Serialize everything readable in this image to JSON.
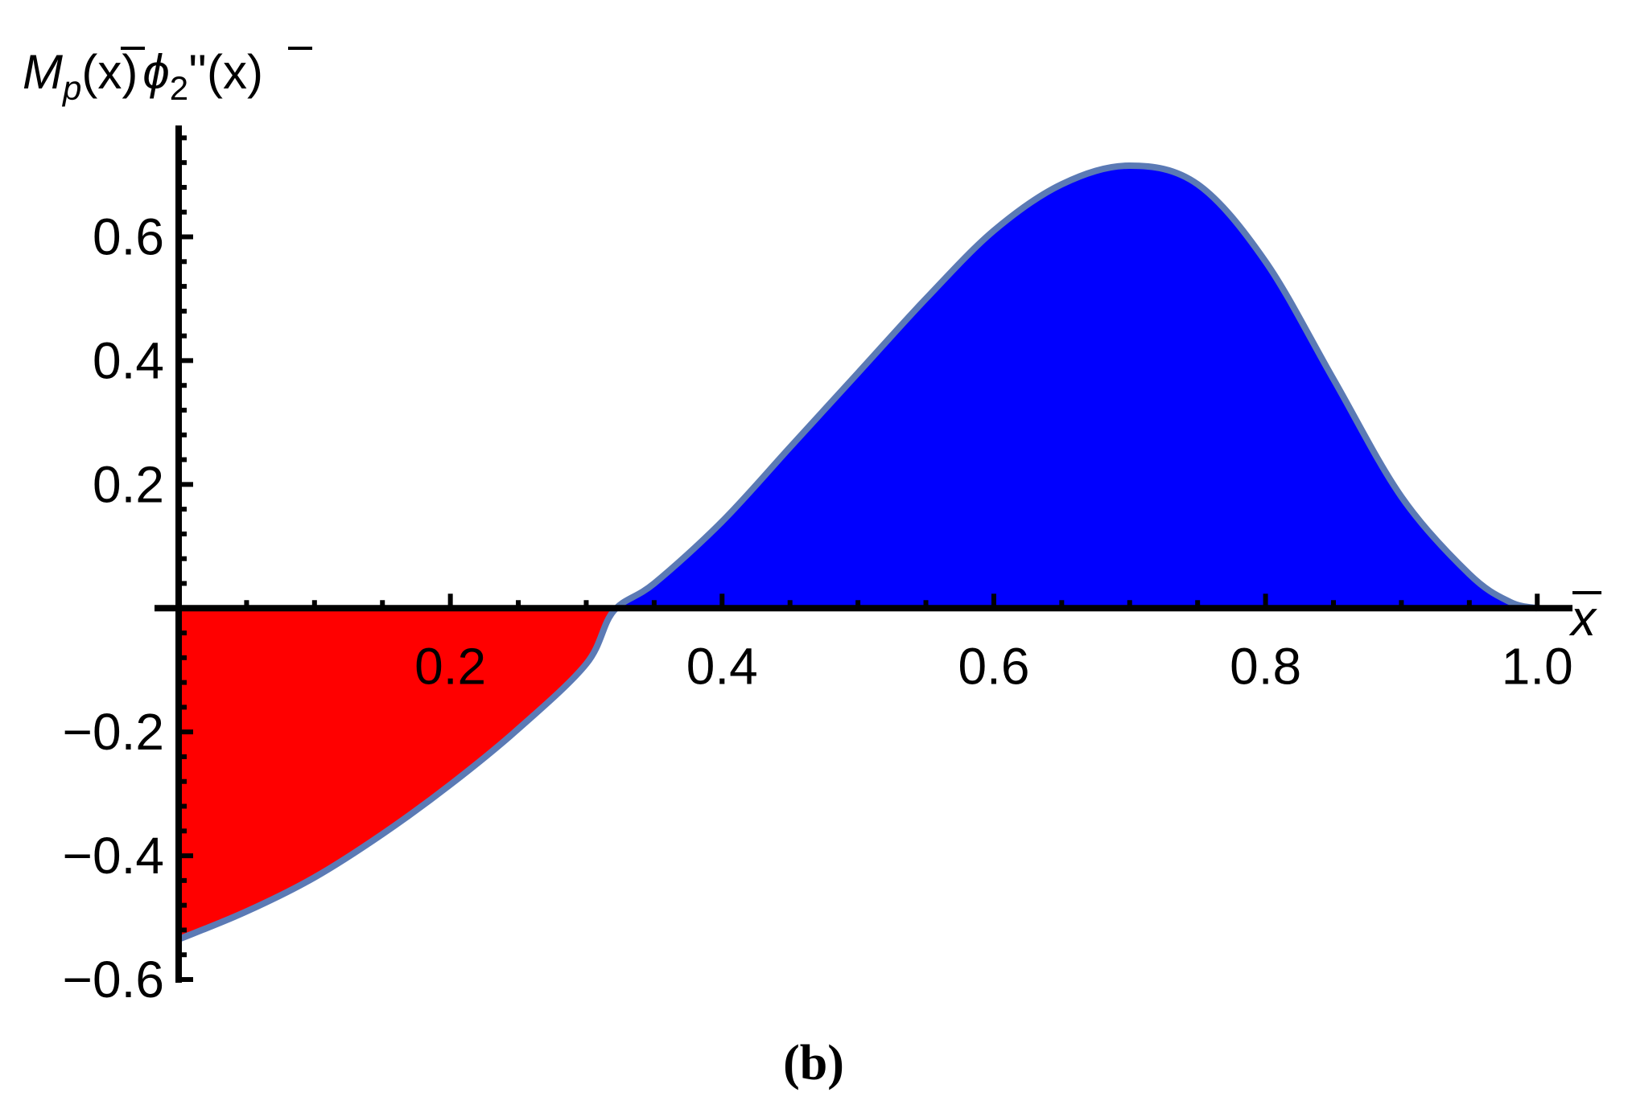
{
  "chart_data": {
    "type": "area",
    "caption": "(b)",
    "ylabel": {
      "base": "M",
      "sub": "p",
      "paren1": "(x)",
      "phi": "ϕ",
      "phi_sub": "2",
      "primes": "''",
      "paren2": "(x)"
    },
    "xlabel": "x",
    "xlim": [
      0,
      1.02
    ],
    "ylim": [
      -0.6,
      0.78
    ],
    "x_ticks": [
      {
        "value": 0.2,
        "label": "0.2"
      },
      {
        "value": 0.4,
        "label": "0.4"
      },
      {
        "value": 0.6,
        "label": "0.6"
      },
      {
        "value": 0.8,
        "label": "0.8"
      },
      {
        "value": 1.0,
        "label": "1.0"
      }
    ],
    "y_ticks": [
      {
        "value": 0.6,
        "label": "0.6"
      },
      {
        "value": 0.4,
        "label": "0.4"
      },
      {
        "value": 0.2,
        "label": "0.2"
      },
      {
        "value": -0.2,
        "label": "−0.2"
      },
      {
        "value": -0.4,
        "label": "−0.4"
      },
      {
        "value": -0.6,
        "label": "−0.6"
      }
    ],
    "series": [
      {
        "x": [
          0,
          0.05,
          0.1,
          0.15,
          0.2,
          0.25,
          0.3,
          0.32,
          0.35,
          0.4,
          0.45,
          0.5,
          0.55,
          0.6,
          0.65,
          0.7,
          0.75,
          0.8,
          0.85,
          0.9,
          0.95,
          0.98,
          1.0
        ],
        "y": [
          -0.535,
          -0.49,
          -0.435,
          -0.365,
          -0.285,
          -0.195,
          -0.09,
          -0.005,
          0.04,
          0.14,
          0.26,
          0.38,
          0.5,
          0.61,
          0.685,
          0.715,
          0.685,
          0.56,
          0.37,
          0.18,
          0.055,
          0.01,
          0.0
        ]
      }
    ],
    "colors": {
      "line": "#5b7ab5",
      "negative_fill": "#ff0000",
      "positive_fill": "#0000ff",
      "axis": "#000000"
    },
    "grid": false
  }
}
